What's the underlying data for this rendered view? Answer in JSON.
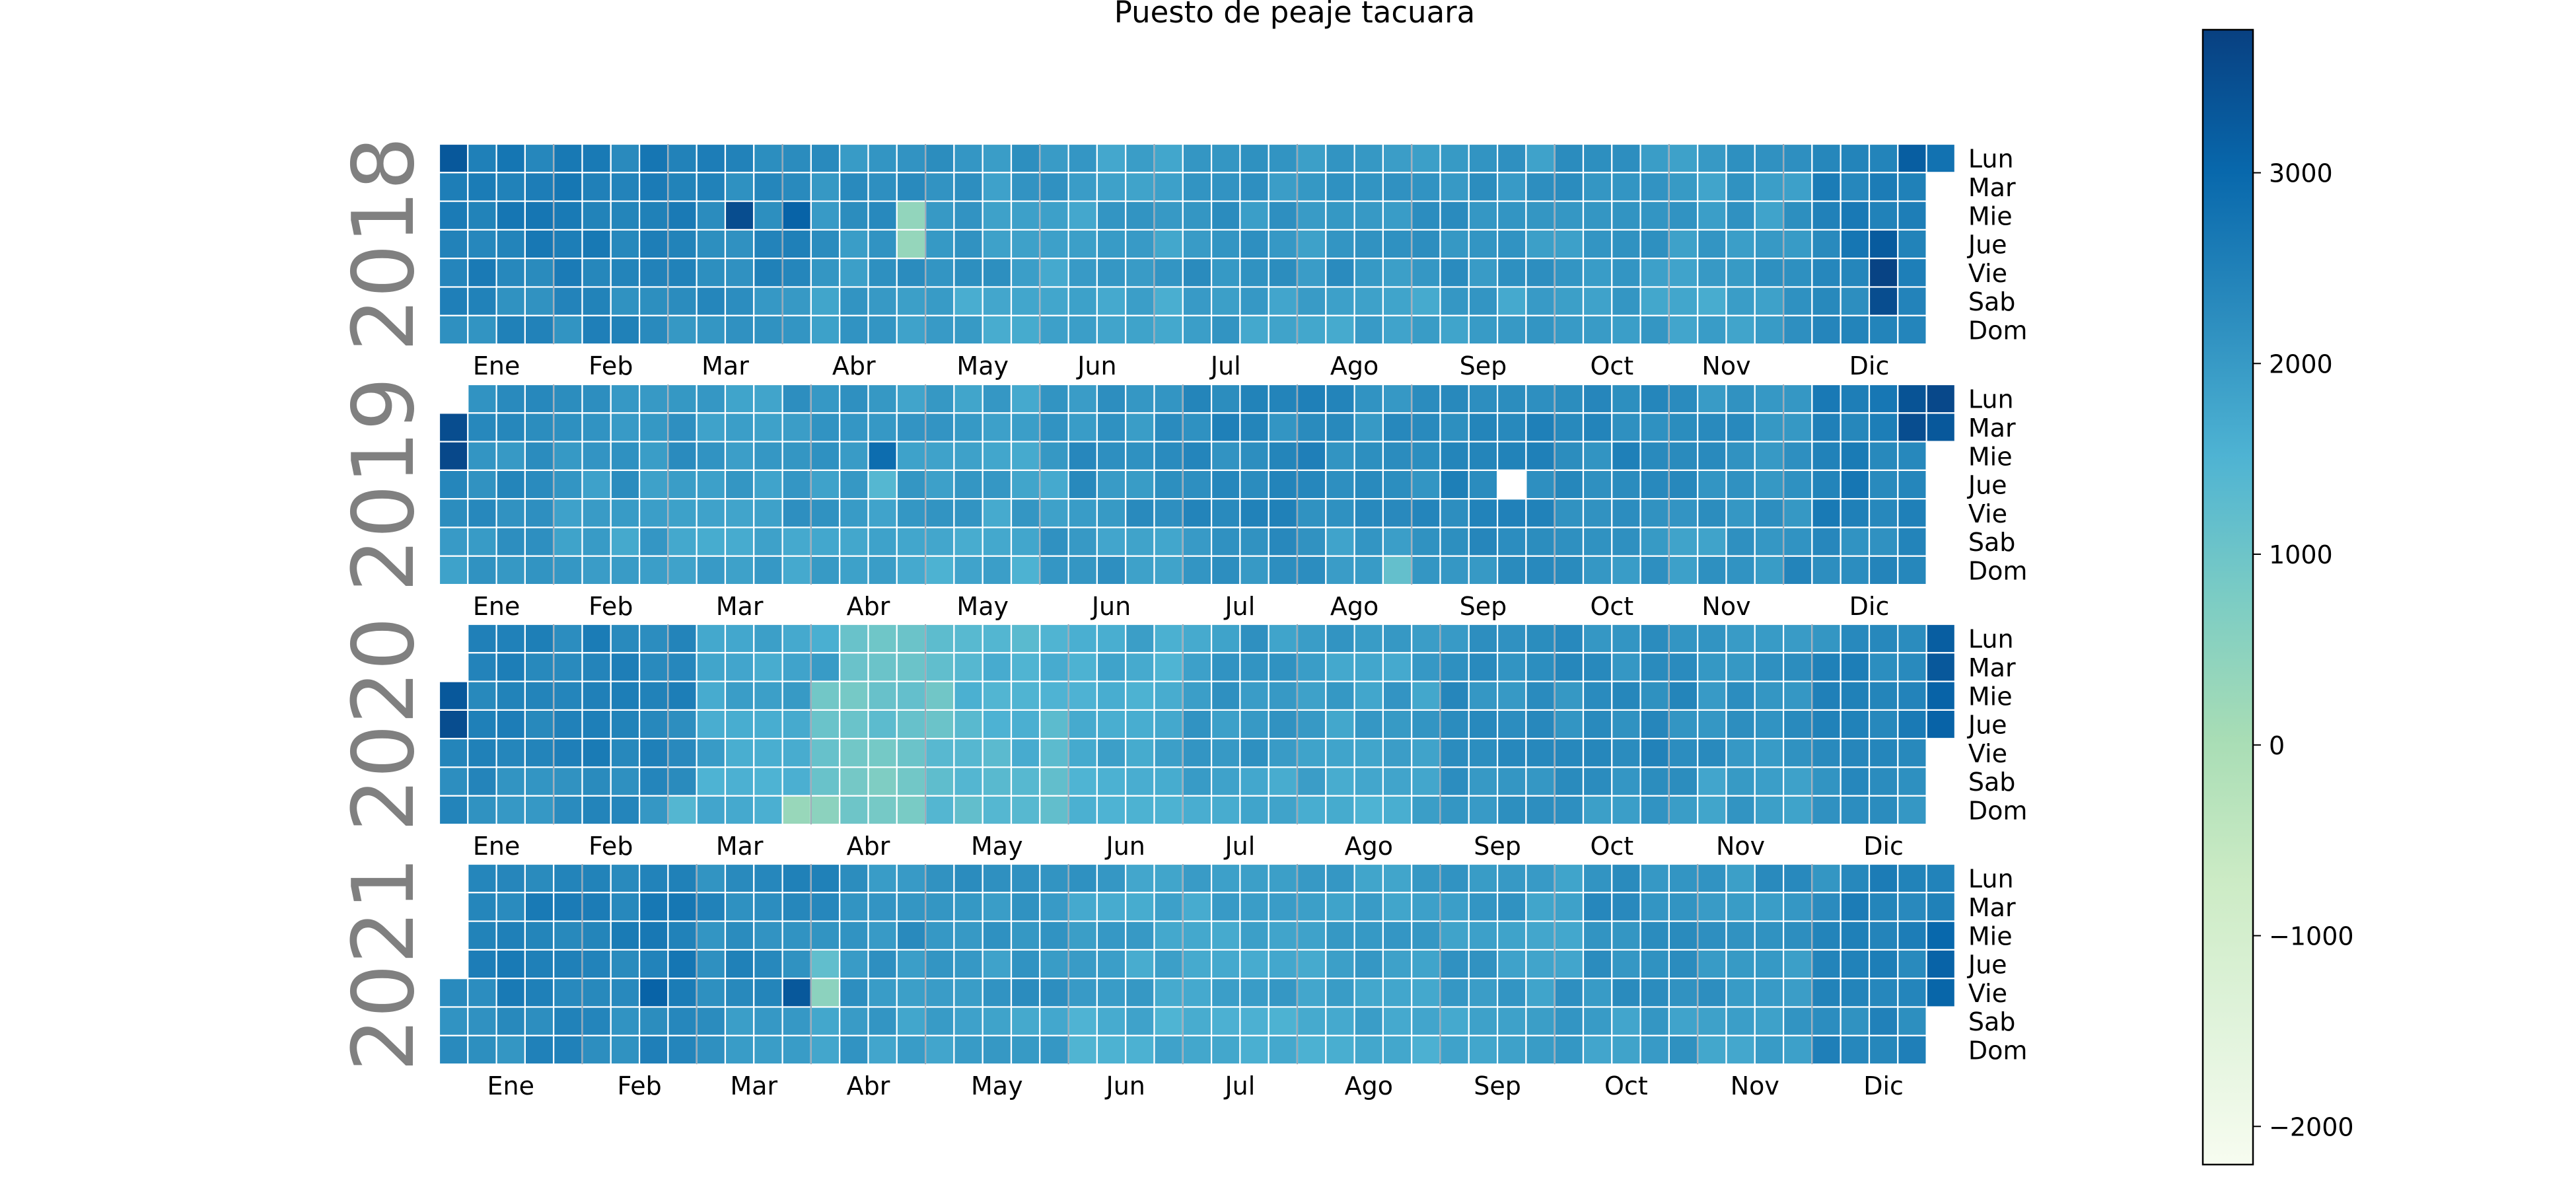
{
  "chart_data": {
    "type": "heatmap",
    "subtype": "calendar",
    "title": "Puesto de peaje tacuara",
    "years": [
      2018,
      2019,
      2020,
      2021
    ],
    "day_labels": [
      "Lun",
      "Mar",
      "Mie",
      "Jue",
      "Vie",
      "Sab",
      "Dom"
    ],
    "month_labels": [
      "Ene",
      "Feb",
      "Mar",
      "Abr",
      "May",
      "Jun",
      "Jul",
      "Ago",
      "Sep",
      "Oct",
      "Nov",
      "Dic"
    ],
    "colormap": "GnBu",
    "color_range": [
      -2200,
      3750
    ],
    "colorbar_ticks": [
      -2000,
      -1000,
      0,
      1000,
      2000,
      3000
    ],
    "colorbar_tick_labels": [
      "−2000",
      "−1000",
      "0",
      "1000",
      "2000",
      "3000"
    ],
    "missing_days": [
      "2019-09-19"
    ],
    "daily_values_by_year": {
      "2018": {
        "base": 2250,
        "profile_by_month": [
          2450,
          2450,
          2300,
          2050,
          1950,
          1850,
          2050,
          2000,
          2000,
          2000,
          1950,
          2450
        ],
        "notable_days": {
          "2018-01-01": 3300,
          "2018-03-14": 3500,
          "2018-03-28": 3100,
          "2018-04-25": 400,
          "2018-04-26": 350,
          "2018-12-20": 3250,
          "2018-12-21": 3700,
          "2018-12-22": 3500,
          "2018-12-24": 3200,
          "2018-12-31": 2800
        }
      },
      "2019": {
        "base": 2050,
        "profile_by_month": [
          2150,
          2000,
          1950,
          1950,
          1850,
          2100,
          2250,
          2150,
          2300,
          2250,
          2100,
          2450
        ],
        "notable_days": {
          "2019-01-01": 3500,
          "2019-01-02": 3600,
          "2019-04-17": 2900,
          "2019-04-18": 1400,
          "2019-08-25": 1150,
          "2019-12-23": 3400,
          "2019-12-24": 3500,
          "2019-12-30": 3600,
          "2019-12-31": 3300
        }
      },
      "2020": {
        "base": 2050,
        "profile_by_month": [
          2350,
          2350,
          1750,
          1000,
          1400,
          1650,
          1950,
          1850,
          2150,
          2200,
          2100,
          2350
        ],
        "notable_days": {
          "2020-01-01": 3300,
          "2020-01-02": 3500,
          "2020-03-29": 300,
          "2020-04-05": 500,
          "2020-12-28": 3200,
          "2020-12-29": 3300,
          "2020-12-30": 3100,
          "2020-12-31": 3100
        }
      },
      "2021": {
        "base": 2100,
        "profile_by_month": [
          2400,
          2450,
          2250,
          2050,
          2000,
          1800,
          1800,
          1850,
          1900,
          2100,
          2050,
          2450
        ],
        "notable_days": {
          "2021-02-19": 3100,
          "2021-03-26": 3300,
          "2021-04-01": 1200,
          "2021-04-02": 500,
          "2021-12-29": 3000,
          "2021-12-30": 3100,
          "2021-12-31": 3050
        }
      }
    }
  }
}
